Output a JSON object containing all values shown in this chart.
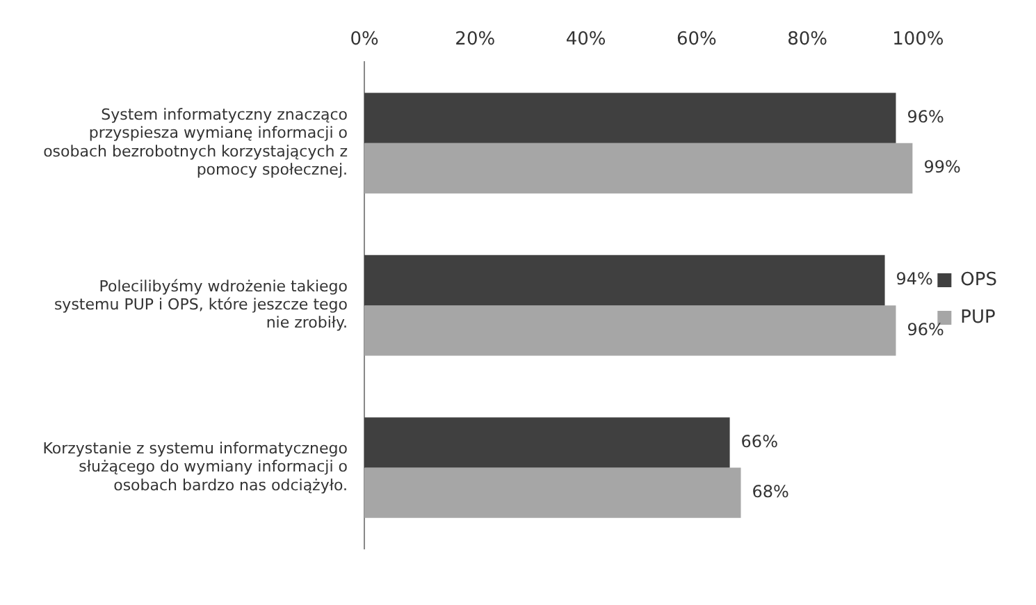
{
  "chart_data": {
    "type": "bar",
    "orientation": "horizontal",
    "categories": [
      "System informatyczny znacząco przyspiesza wymianę informacji o osobach bezrobotnych korzystających z pomocy społecznej.",
      "Polecilibyśmy wdrożenie takiego systemu PUP i OPS, które jeszcze tego nie zrobiły.",
      "Korzystanie z systemu informatycznego służącego do wymiany informacji o osobach bardzo nas odciążyło."
    ],
    "series": [
      {
        "name": "OPS",
        "color": "#404040",
        "values": [
          96,
          94,
          66
        ],
        "value_labels": [
          "96%",
          "94%",
          "66%"
        ]
      },
      {
        "name": "PUP",
        "color": "#a6a6a6",
        "values": [
          99,
          96,
          68
        ],
        "value_labels": [
          "99%",
          "96%",
          "68%"
        ]
      }
    ],
    "xlim": [
      0,
      100
    ],
    "xticks": [
      {
        "value": 0,
        "label": "0%"
      },
      {
        "value": 20,
        "label": "20%"
      },
      {
        "value": 40,
        "label": "40%"
      },
      {
        "value": 60,
        "label": "60%"
      },
      {
        "value": 80,
        "label": "80%"
      },
      {
        "value": 100,
        "label": "100%"
      }
    ],
    "grid": false,
    "legend": "right"
  }
}
